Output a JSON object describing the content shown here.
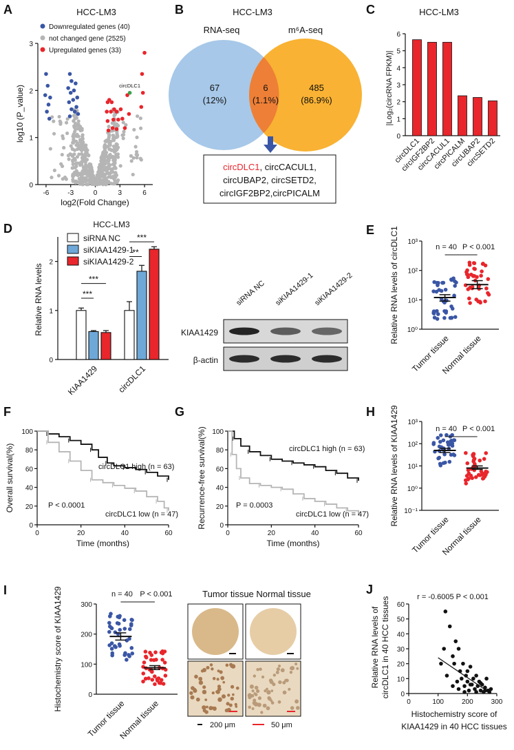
{
  "colors": {
    "blue": "#3a56a5",
    "red": "#e8262c",
    "grey": "#b5b5b5",
    "lightblue": "#6ea8d8",
    "venn_blue": "#a7c8e8",
    "venn_orange": "#f9b233",
    "venn_overlap": "#ee7f36",
    "black": "#111111"
  },
  "panels": {
    "A": {
      "letter": "A",
      "title": "HCC-LM3",
      "legend": [
        "Downregulated genes (40)",
        "not changed gene (2525)",
        "Upregulated genes (33)"
      ],
      "highlight_label": "circDLC1",
      "xlabel": "log2(Fold Change)",
      "ylabel": "log10 (P_value)"
    },
    "B": {
      "letter": "B",
      "title": "HCC-LM3",
      "left_label": "RNA-seq",
      "right_label": "m⁶A-seq",
      "left_count": "67",
      "left_pct": "(12%)",
      "mid_count": "6",
      "mid_pct": "(1.1%)",
      "right_count": "485",
      "right_pct": "(86.9%)",
      "box_lines": [
        "circDLC1, circCACUL1,",
        "circUBAP2, circSETD2,",
        "circIGF2BP2,circPICALM"
      ],
      "box_highlight": "circDLC1"
    },
    "C": {
      "letter": "C",
      "title": "HCC-LM3",
      "ylabel": "|Log₂(circRNA FPKM)|"
    },
    "D": {
      "letter": "D",
      "title": "HCC-LM3",
      "legend": [
        "siRNA NC",
        "siKIAA1429-1",
        "siKIAA1429-2"
      ],
      "ylabel": "Relative RNA levels",
      "groups": [
        "KIAA1429",
        "circDLC1"
      ],
      "sig": [
        "***",
        "***",
        "**",
        "***"
      ],
      "blot_lanes": [
        "siRNA NC",
        "siKIAA1429-1",
        "siKIAA1429-2"
      ],
      "blot_rows": [
        "KIAA1429",
        "β-actin"
      ]
    },
    "E": {
      "letter": "E",
      "stat_n": "n = 40",
      "stat_p": "P < 0.001",
      "ylabel": "Relative RNA levels of circDLC1",
      "groups": [
        "Tumor tissue",
        "Normal tissue"
      ]
    },
    "F": {
      "letter": "F",
      "ylabel": "Overall survival(%)",
      "xlabel": "Time (months)",
      "high_label": "circDLC1 high (n = 63)",
      "low_label": "circDLC1 low (n = 47)",
      "p_label": "P < 0.0001"
    },
    "G": {
      "letter": "G",
      "ylabel": "Recurrence-free survival(%)",
      "xlabel": "Time (months)",
      "high_label": "circDLC1 high (n = 63)",
      "low_label": "circDLC1 low (n = 47)",
      "p_label": "P = 0.0003"
    },
    "H": {
      "letter": "H",
      "stat_n": "n = 40",
      "stat_p": "P < 0.001",
      "ylabel": "Relative RNA levels of KIAA1429",
      "groups": [
        "Tumor tissue",
        "Normal tissue"
      ]
    },
    "I": {
      "letter": "I",
      "stat_n": "n = 40",
      "stat_p": "P < 0.001",
      "ylabel": "Histochemistry score of KIAA1429",
      "groups": [
        "Tumor tissue",
        "Normal tissue"
      ],
      "ihc_title": "Tumor tissue Normal tissue",
      "scale1": "200 μm",
      "scale2": "50 μm"
    },
    "J": {
      "letter": "J",
      "stat": "r = -0.6005  P < 0.001",
      "ylabel1": "Relative RNA levels of",
      "ylabel2": "circDLC1 in 40 HCC tissues",
      "xlabel1": "Histochemistry score of",
      "xlabel2": "KIAA1429 in 40 HCC tissues"
    }
  },
  "chart_data": [
    {
      "id": "A",
      "type": "scatter",
      "title": "HCC-LM3",
      "xlabel": "log2(Fold Change)",
      "ylabel": "log10 (P_value)",
      "xlim": [
        -7,
        7
      ],
      "ylim": [
        0,
        3
      ],
      "xticks": [
        -6,
        -3,
        0,
        3,
        6
      ],
      "yticks": [
        0,
        1,
        2,
        3
      ],
      "series": [
        {
          "name": "Downregulated genes (40)",
          "color": "#3a56a5",
          "points": [
            [
              -6,
              2.35
            ],
            [
              -5.8,
              2.1
            ],
            [
              -6.1,
              1.9
            ],
            [
              -5.7,
              1.7
            ],
            [
              -5.9,
              1.55
            ],
            [
              -5.5,
              1.85
            ],
            [
              -5.6,
              1.4
            ],
            [
              -3.1,
              2.35
            ],
            [
              -2.9,
              2.2
            ],
            [
              -3.3,
              2.05
            ],
            [
              -2.6,
              2.0
            ],
            [
              -3.0,
              1.95
            ],
            [
              -2.4,
              2.15
            ],
            [
              -3.2,
              1.75
            ],
            [
              -2.7,
              1.8
            ],
            [
              -2.2,
              1.85
            ],
            [
              -2.9,
              1.6
            ],
            [
              -2.5,
              1.55
            ],
            [
              -3.1,
              1.45
            ],
            [
              -2.3,
              1.65
            ],
            [
              -2.1,
              1.5
            ]
          ]
        },
        {
          "name": "Upregulated genes (33)",
          "color": "#e8262c",
          "points": [
            [
              6.0,
              2.8
            ],
            [
              5.7,
              2.35
            ],
            [
              5.8,
              1.95
            ],
            [
              5.6,
              1.65
            ],
            [
              1.5,
              1.75
            ],
            [
              1.7,
              1.8
            ],
            [
              2.0,
              1.75
            ],
            [
              2.3,
              1.6
            ],
            [
              1.4,
              1.55
            ],
            [
              1.9,
              1.55
            ],
            [
              2.6,
              1.55
            ],
            [
              3.1,
              1.6
            ],
            [
              1.5,
              1.35
            ],
            [
              2.2,
              1.38
            ],
            [
              2.8,
              1.38
            ],
            [
              3.3,
              1.4
            ],
            [
              1.6,
              1.15
            ],
            [
              2.1,
              1.2
            ],
            [
              2.6,
              1.18
            ],
            [
              3.6,
              1.2
            ],
            [
              4.1,
              1.5
            ],
            [
              3.9,
              1.9
            ]
          ]
        },
        {
          "name": "circDLC1",
          "color": "#3aa04a",
          "points": [
            [
              4.2,
              1.95
            ]
          ]
        }
      ]
    },
    {
      "id": "C",
      "type": "bar",
      "title": "HCC-LM3",
      "ylabel": "|Log₂(circRNA FPKM)|",
      "categories": [
        "circDLC1",
        "circIGF2BP2",
        "circCACUL1",
        "circPICALM",
        "circUBAP2",
        "circSETD2"
      ],
      "values": [
        5.65,
        5.5,
        5.5,
        2.35,
        2.25,
        2.05
      ],
      "ylim": [
        0,
        6
      ],
      "yticks": [
        0,
        1,
        2,
        3,
        4,
        5,
        6
      ]
    },
    {
      "id": "D",
      "type": "bar",
      "ylabel": "Relative RNA levels",
      "categories": [
        "KIAA1429",
        "circDLC1"
      ],
      "ylim": [
        0,
        2.5
      ],
      "yticks": [
        0,
        1,
        2
      ],
      "series": [
        {
          "name": "siRNA NC",
          "values": [
            1.0,
            1.0
          ],
          "errors": [
            0.05,
            0.18
          ]
        },
        {
          "name": "siKIAA1429-1",
          "values": [
            0.57,
            1.8
          ],
          "errors": [
            0.02,
            0.12
          ]
        },
        {
          "name": "siKIAA1429-2",
          "values": [
            0.55,
            2.25
          ],
          "errors": [
            0.04,
            0.05
          ]
        }
      ]
    },
    {
      "id": "E",
      "type": "scatter",
      "scale": "log",
      "ylabel": "Relative RNA levels of circDLC1",
      "categories": [
        "Tumor tissue",
        "Normal tissue"
      ],
      "ylim": [
        1,
        1000
      ],
      "yticks": [
        "10⁰",
        "10¹",
        "10²",
        "10³"
      ],
      "means": [
        12,
        33
      ],
      "sem_low": [
        9,
        24
      ],
      "sem_high": [
        15,
        45
      ]
    },
    {
      "id": "F",
      "type": "line",
      "ylabel": "Overall survival(%)",
      "xlabel": "Time (months)",
      "xlim": [
        0,
        60
      ],
      "ylim": [
        0,
        100
      ],
      "xticks": [
        0,
        20,
        40,
        60
      ],
      "yticks": [
        0,
        20,
        40,
        60,
        80,
        100
      ],
      "series": [
        {
          "name": "circDLC1 high (n = 63)",
          "x": [
            0,
            5,
            10,
            15,
            20,
            25,
            28,
            32,
            35,
            40,
            45,
            50,
            55,
            60
          ],
          "y": [
            100,
            97,
            94,
            90,
            86,
            80,
            72,
            66,
            63,
            61,
            59,
            56,
            52,
            48
          ]
        },
        {
          "name": "circDLC1 low (n = 47)",
          "x": [
            0,
            5,
            10,
            15,
            20,
            25,
            30,
            35,
            40,
            45,
            50,
            55,
            58,
            60
          ],
          "y": [
            100,
            88,
            78,
            68,
            58,
            48,
            45,
            42,
            39,
            36,
            30,
            25,
            18,
            15
          ]
        }
      ]
    },
    {
      "id": "G",
      "type": "line",
      "ylabel": "Recurrence-free survival(%)",
      "xlabel": "Time (months)",
      "xlim": [
        0,
        60
      ],
      "ylim": [
        0,
        100
      ],
      "xticks": [
        0,
        20,
        40,
        60
      ],
      "yticks": [
        0,
        20,
        40,
        60,
        80,
        100
      ],
      "series": [
        {
          "name": "circDLC1 high (n = 63)",
          "x": [
            0,
            3,
            6,
            10,
            15,
            20,
            25,
            30,
            35,
            40,
            45,
            50,
            55,
            60
          ],
          "y": [
            100,
            92,
            84,
            78,
            74,
            70,
            68,
            66,
            64,
            62,
            58,
            55,
            50,
            47
          ]
        },
        {
          "name": "circDLC1 low (n = 47)",
          "x": [
            0,
            2,
            4,
            6,
            10,
            15,
            20,
            25,
            30,
            35,
            40,
            45,
            50,
            55,
            60
          ],
          "y": [
            100,
            75,
            60,
            50,
            44,
            42,
            40,
            38,
            33,
            28,
            25,
            22,
            18,
            15,
            10
          ]
        }
      ]
    },
    {
      "id": "H",
      "type": "scatter",
      "scale": "log",
      "ylabel": "Relative RNA levels of KIAA1429",
      "categories": [
        "Tumor tissue",
        "Normal tissue"
      ],
      "ylim": [
        0.1,
        1000
      ],
      "yticks": [
        "10⁻¹",
        "10⁰",
        "10¹",
        "10²",
        "10³"
      ],
      "means": [
        50,
        8
      ],
      "sem_low": [
        40,
        7
      ],
      "sem_high": [
        62,
        10
      ]
    },
    {
      "id": "I",
      "type": "scatter",
      "ylabel": "Histochemistry score of KIAA1429",
      "categories": [
        "Tumor tissue",
        "Normal tissue"
      ],
      "ylim": [
        0,
        300
      ],
      "yticks": [
        0,
        100,
        200,
        300
      ],
      "means": [
        192,
        88
      ],
      "sem_low": [
        180,
        82
      ],
      "sem_high": [
        204,
        95
      ]
    },
    {
      "id": "J",
      "type": "scatter",
      "xlabel": "Histochemistry score of KIAA1429 in 40 HCC tissues",
      "ylabel": "Relative RNA levels of circDLC1 in 40 HCC tissues",
      "xlim": [
        0,
        300
      ],
      "ylim": [
        0,
        60
      ],
      "xticks": [
        0,
        100,
        200,
        300
      ],
      "yticks": [
        0,
        10,
        20,
        30,
        40,
        50,
        60
      ],
      "points": [
        [
          110,
          20
        ],
        [
          120,
          30
        ],
        [
          125,
          55
        ],
        [
          130,
          12
        ],
        [
          140,
          45
        ],
        [
          150,
          25
        ],
        [
          155,
          20
        ],
        [
          160,
          35
        ],
        [
          165,
          8
        ],
        [
          170,
          30
        ],
        [
          175,
          15
        ],
        [
          180,
          10
        ],
        [
          185,
          20
        ],
        [
          190,
          5
        ],
        [
          195,
          12
        ],
        [
          200,
          8
        ],
        [
          205,
          2
        ],
        [
          210,
          18
        ],
        [
          215,
          6
        ],
        [
          220,
          10
        ],
        [
          225,
          3
        ],
        [
          230,
          12
        ],
        [
          235,
          5
        ],
        [
          240,
          8
        ],
        [
          245,
          2
        ],
        [
          250,
          6
        ],
        [
          255,
          1
        ],
        [
          260,
          4
        ],
        [
          265,
          10
        ],
        [
          270,
          2
        ],
        [
          275,
          1
        ],
        [
          280,
          3
        ],
        [
          150,
          5
        ],
        [
          170,
          3
        ],
        [
          190,
          1
        ],
        [
          210,
          6
        ],
        [
          230,
          1
        ],
        [
          245,
          7
        ],
        [
          260,
          2
        ],
        [
          200,
          15
        ]
      ],
      "fit": [
        [
          100,
          24
        ],
        [
          280,
          0
        ]
      ]
    }
  ]
}
